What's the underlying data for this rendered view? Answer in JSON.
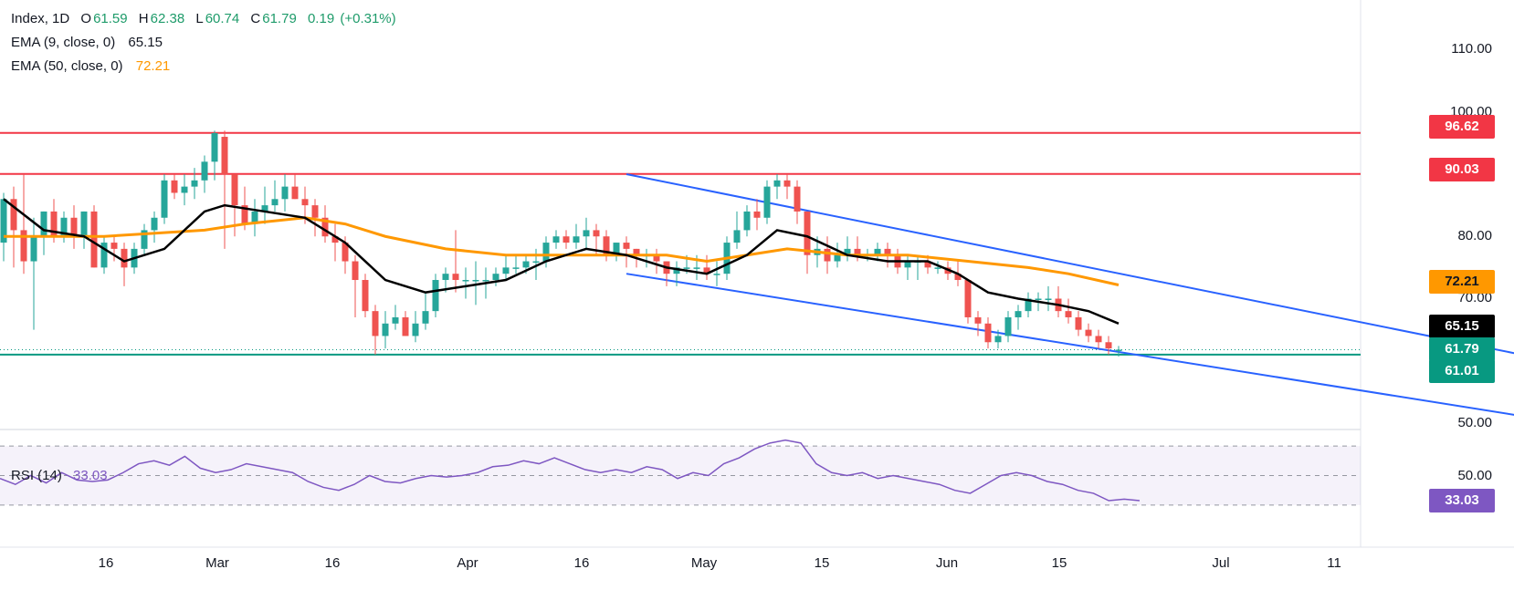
{
  "legend": {
    "symbol": "Index, 1D",
    "open_label": "O",
    "open": "61.59",
    "high_label": "H",
    "high": "62.38",
    "low_label": "L",
    "low": "60.74",
    "close_label": "C",
    "close": "61.79",
    "change": "0.19",
    "change_pct": "(+0.31%)",
    "ema9_label": "EMA (9, close, 0)",
    "ema9_value": "65.15",
    "ema50_label": "EMA (50, close, 0)",
    "ema50_value": "72.21",
    "rsi_label": "RSI (14)",
    "rsi_value": "33.03"
  },
  "colors": {
    "up": "#26a69a",
    "down": "#ef5350",
    "ema9": "#000000",
    "ema50": "#ff9800",
    "resistance": "#f23645",
    "support": "#089981",
    "channel": "#2962ff",
    "rsi": "#7e57c2"
  },
  "price_tags": [
    {
      "value": "96.62",
      "color": "#f23645"
    },
    {
      "value": "90.03",
      "color": "#f23645"
    },
    {
      "value": "72.21",
      "color": "#ff9800",
      "text_color": "#131722"
    },
    {
      "value": "65.15",
      "color": "#000000"
    },
    {
      "value": "61.79",
      "color": "#089981"
    },
    {
      "value": "61.01",
      "color": "#089981"
    }
  ],
  "rsi_tags": [
    {
      "value": "33.03",
      "color": "#7e57c2"
    }
  ],
  "chart_data": {
    "type": "candlestick",
    "y_axis": {
      "ticks": [
        "110.00",
        "100.00",
        "80.00",
        "70.00",
        "50.00"
      ],
      "range": [
        50,
        113
      ]
    },
    "rsi_axis": {
      "ticks": [
        "50.00"
      ],
      "bands": [
        30,
        70
      ]
    },
    "x_axis": {
      "ticks": [
        "16",
        "Mar",
        "16",
        "Apr",
        "16",
        "May",
        "15",
        "Jun",
        "15",
        "Jul",
        "11"
      ]
    },
    "horizontal_levels": [
      96.62,
      90.03,
      61.01
    ],
    "channel": {
      "upper": [
        [
          62,
          90.0
        ],
        [
          146,
          57.2
        ]
      ],
      "lower": [
        [
          62,
          74.0
        ],
        [
          140,
          50.0
        ]
      ]
    },
    "candles": [
      [
        79,
        87,
        76,
        86
      ],
      [
        86,
        88,
        75,
        81
      ],
      [
        81,
        90,
        74,
        76
      ],
      [
        76,
        83,
        65,
        80
      ],
      [
        80,
        84,
        77,
        84
      ],
      [
        84,
        86,
        79,
        80
      ],
      [
        80,
        84,
        79,
        83
      ],
      [
        83,
        85,
        78,
        80
      ],
      [
        80,
        84,
        78,
        84
      ],
      [
        84,
        85,
        75,
        75
      ],
      [
        75,
        80,
        74,
        79
      ],
      [
        79,
        80,
        76,
        78
      ],
      [
        78,
        79,
        72,
        75
      ],
      [
        75,
        79,
        74,
        78
      ],
      [
        78,
        82,
        77,
        81
      ],
      [
        81,
        84,
        79,
        83
      ],
      [
        83,
        90,
        82,
        89
      ],
      [
        89,
        90,
        86,
        87
      ],
      [
        87,
        90,
        85,
        88
      ],
      [
        88,
        91,
        86,
        89
      ],
      [
        89,
        93,
        87,
        92
      ],
      [
        92,
        97,
        89,
        96.6
      ],
      [
        96,
        97,
        78,
        90
      ],
      [
        90,
        90,
        80,
        85
      ],
      [
        85,
        88,
        81,
        82
      ],
      [
        82,
        86,
        80,
        84
      ],
      [
        84,
        88,
        82,
        85
      ],
      [
        85,
        89,
        84,
        86
      ],
      [
        86,
        90,
        84,
        88
      ],
      [
        88,
        90,
        86,
        86
      ],
      [
        86,
        88,
        82,
        85
      ],
      [
        85,
        86,
        80,
        83
      ],
      [
        83,
        85,
        79,
        80
      ],
      [
        80,
        82,
        76,
        79
      ],
      [
        79,
        80,
        74,
        76
      ],
      [
        76,
        77,
        67,
        73
      ],
      [
        73,
        74,
        67,
        68
      ],
      [
        68,
        69,
        61,
        64
      ],
      [
        64,
        68,
        62,
        66
      ],
      [
        66,
        69,
        65,
        67
      ],
      [
        67,
        68,
        64,
        64
      ],
      [
        64,
        68,
        63,
        66
      ],
      [
        66,
        71,
        65,
        68
      ],
      [
        68,
        74,
        67,
        73
      ],
      [
        73,
        75,
        71,
        74
      ],
      [
        74,
        81,
        71,
        73
      ],
      [
        73,
        75,
        70,
        73
      ],
      [
        73,
        76,
        69,
        73
      ],
      [
        73,
        75,
        70,
        73
      ],
      [
        73,
        75,
        72,
        74
      ],
      [
        74,
        77,
        73,
        75
      ],
      [
        75,
        77,
        74,
        75
      ],
      [
        75,
        77,
        74,
        76
      ],
      [
        76,
        78,
        73,
        76
      ],
      [
        76,
        80,
        75,
        79
      ],
      [
        79,
        81,
        78,
        80
      ],
      [
        80,
        81,
        78,
        79
      ],
      [
        79,
        82,
        78,
        80
      ],
      [
        80,
        83,
        78,
        81
      ],
      [
        81,
        82,
        77,
        80
      ],
      [
        80,
        81,
        76,
        77
      ],
      [
        77,
        79,
        76,
        79
      ],
      [
        79,
        80,
        75,
        78
      ],
      [
        78,
        78,
        75,
        77
      ],
      [
        77,
        78,
        75,
        77
      ],
      [
        77,
        78,
        74,
        76
      ],
      [
        76,
        76,
        72,
        74
      ],
      [
        74,
        76,
        72,
        75
      ],
      [
        75,
        77,
        74,
        75
      ],
      [
        75,
        77,
        73,
        75
      ],
      [
        75,
        77,
        73,
        74
      ],
      [
        74,
        76,
        72,
        74
      ],
      [
        74,
        80,
        73,
        79
      ],
      [
        79,
        84,
        78,
        81
      ],
      [
        81,
        85,
        80,
        84
      ],
      [
        84,
        86,
        81,
        83
      ],
      [
        83,
        89,
        82,
        88
      ],
      [
        88,
        90,
        86,
        89
      ],
      [
        89,
        90,
        86,
        88
      ],
      [
        88,
        89,
        82,
        84
      ],
      [
        84,
        84,
        74,
        77
      ],
      [
        77,
        80,
        75,
        78
      ],
      [
        78,
        80,
        74,
        76
      ],
      [
        76,
        79,
        75,
        77
      ],
      [
        77,
        80,
        76,
        78
      ],
      [
        78,
        80,
        76,
        77
      ],
      [
        77,
        78,
        76,
        77
      ],
      [
        77,
        79,
        76,
        78
      ],
      [
        78,
        79,
        75,
        77
      ],
      [
        77,
        78,
        74,
        75
      ],
      [
        75,
        77,
        73,
        76
      ],
      [
        76,
        77,
        73,
        76
      ],
      [
        76,
        77,
        74,
        75
      ],
      [
        75,
        76,
        74,
        75
      ],
      [
        75,
        76,
        73,
        74
      ],
      [
        74,
        76,
        72,
        73
      ],
      [
        73,
        73,
        66,
        67
      ],
      [
        67,
        68,
        64,
        66
      ],
      [
        66,
        67,
        62,
        63
      ],
      [
        63,
        65,
        62,
        64
      ],
      [
        64,
        68,
        63,
        67
      ],
      [
        67,
        69,
        65,
        68
      ],
      [
        68,
        71,
        67,
        70
      ],
      [
        70,
        71,
        68,
        70
      ],
      [
        70,
        72,
        68,
        70
      ],
      [
        70,
        72,
        67,
        68
      ],
      [
        68,
        70,
        66,
        67
      ],
      [
        67,
        68,
        64,
        65
      ],
      [
        65,
        66,
        63,
        64
      ],
      [
        64,
        65,
        62,
        63
      ],
      [
        63,
        64,
        61,
        62
      ],
      [
        61.6,
        62.4,
        60.7,
        61.8
      ]
    ],
    "ema9": [
      [
        0,
        86
      ],
      [
        4,
        81
      ],
      [
        8,
        80
      ],
      [
        12,
        76
      ],
      [
        16,
        78
      ],
      [
        20,
        84
      ],
      [
        22,
        85
      ],
      [
        26,
        84
      ],
      [
        30,
        83
      ],
      [
        34,
        79
      ],
      [
        38,
        73
      ],
      [
        42,
        71
      ],
      [
        46,
        72
      ],
      [
        50,
        73
      ],
      [
        54,
        76
      ],
      [
        58,
        78
      ],
      [
        62,
        77
      ],
      [
        66,
        75
      ],
      [
        70,
        74
      ],
      [
        74,
        77
      ],
      [
        77,
        81
      ],
      [
        80,
        80
      ],
      [
        84,
        77
      ],
      [
        88,
        76
      ],
      [
        92,
        76
      ],
      [
        95,
        74
      ],
      [
        98,
        71
      ],
      [
        101,
        70
      ],
      [
        105,
        69
      ],
      [
        108,
        68
      ],
      [
        111,
        66
      ]
    ],
    "ema50": [
      [
        0,
        80
      ],
      [
        10,
        80
      ],
      [
        20,
        81
      ],
      [
        24,
        82
      ],
      [
        30,
        83
      ],
      [
        34,
        82
      ],
      [
        38,
        80
      ],
      [
        44,
        78
      ],
      [
        50,
        77
      ],
      [
        56,
        77
      ],
      [
        62,
        77
      ],
      [
        66,
        77
      ],
      [
        70,
        76
      ],
      [
        74,
        77
      ],
      [
        78,
        78
      ],
      [
        84,
        77
      ],
      [
        90,
        77
      ],
      [
        96,
        76
      ],
      [
        102,
        75
      ],
      [
        106,
        74
      ],
      [
        111,
        72.2
      ]
    ],
    "rsi": [
      48,
      44,
      50,
      45,
      52,
      47,
      46,
      47,
      52,
      58,
      60,
      57,
      63,
      55,
      52,
      54,
      58,
      56,
      54,
      52,
      46,
      42,
      40,
      44,
      50,
      46,
      45,
      48,
      50,
      49,
      50,
      52,
      56,
      57,
      60,
      58,
      62,
      58,
      54,
      52,
      54,
      52,
      56,
      54,
      48,
      52,
      50,
      58,
      62,
      68,
      72,
      74,
      72,
      58,
      52,
      50,
      52,
      48,
      50,
      48,
      46,
      44,
      40,
      38,
      44,
      50,
      52,
      50,
      46,
      44,
      40,
      38,
      33,
      34,
      33.03
    ]
  }
}
